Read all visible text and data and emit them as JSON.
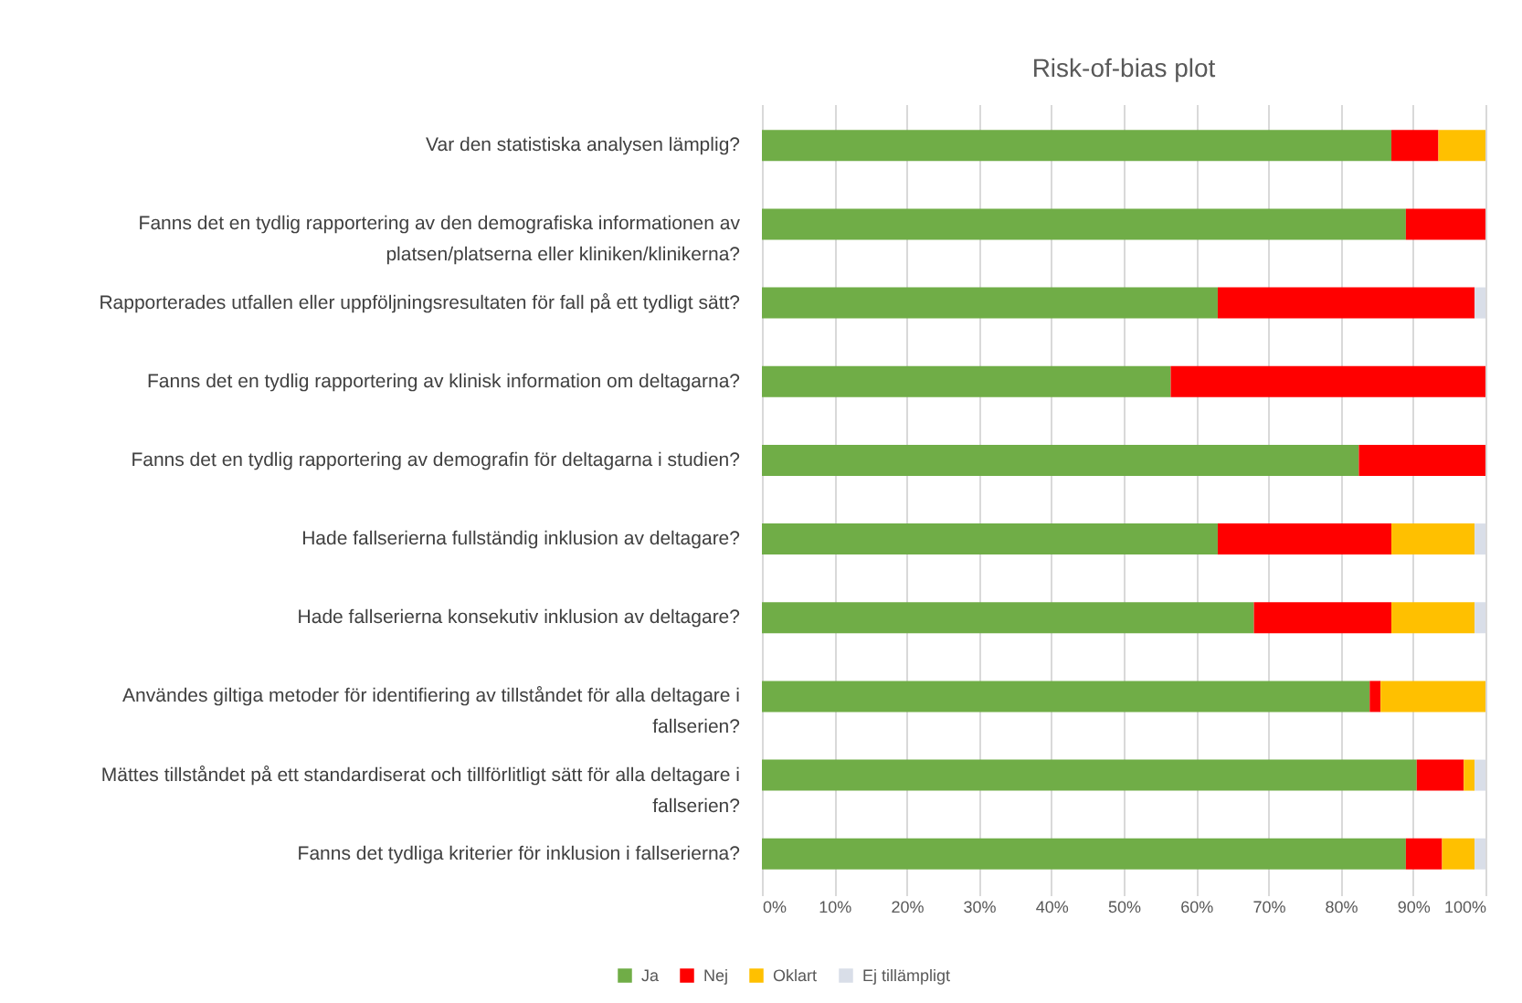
{
  "chart_data": {
    "type": "bar",
    "orientation": "horizontal",
    "stacked": true,
    "title": "Risk-of-bias plot",
    "categories": [
      "Var den statistiska analysen lämplig?",
      "Fanns det en tydlig rapportering av den demografiska informationen av platsen/platserna eller kliniken/klinikerna?",
      "Rapporterades utfallen eller uppföljningsresultaten för fall på ett tydligt sätt?",
      "Fanns det en tydlig rapportering av klinisk information om deltagarna?",
      "Fanns det en tydlig rapportering av demografin för deltagarna i studien?",
      "Hade fallserierna fullständig inklusion av deltagare?",
      "Hade fallserierna konsekutiv inklusion av deltagare?",
      "Användes giltiga metoder för identifiering av tillståndet för alla deltagare i fallserien?",
      "Mättes tillståndet på ett standardiserat och tillförlitligt sätt för alla deltagare i fallserien?",
      "Fanns det tydliga kriterier för inklusion i fallserierna?"
    ],
    "series": [
      {
        "name": "Ja",
        "color": "#70ad47",
        "values": [
          87,
          89,
          63,
          56.5,
          82.5,
          63,
          68,
          84,
          90.5,
          89
        ]
      },
      {
        "name": "Nej",
        "color": "#ff0000",
        "values": [
          6.5,
          11,
          35.5,
          43.5,
          17.5,
          24,
          19,
          1.5,
          6.5,
          5
        ]
      },
      {
        "name": "Oklart",
        "color": "#ffc000",
        "values": [
          6.5,
          0,
          0,
          0,
          0,
          11.5,
          11.5,
          14.5,
          1.5,
          4.5
        ]
      },
      {
        "name": "Ej tillämpligt",
        "color": "#d9dee8",
        "values": [
          0,
          0,
          1.5,
          0,
          0,
          1.5,
          1.5,
          0,
          1.5,
          1.5
        ]
      }
    ],
    "xlim": [
      0,
      100
    ],
    "xticks": [
      {
        "value": 0,
        "label": "0%"
      },
      {
        "value": 10,
        "label": "10%"
      },
      {
        "value": 20,
        "label": "20%"
      },
      {
        "value": 30,
        "label": "30%"
      },
      {
        "value": 40,
        "label": "40%"
      },
      {
        "value": 50,
        "label": "50%"
      },
      {
        "value": 60,
        "label": "60%"
      },
      {
        "value": 70,
        "label": "70%"
      },
      {
        "value": 80,
        "label": "80%"
      },
      {
        "value": 90,
        "label": "90%"
      },
      {
        "value": 100,
        "label": "100%"
      }
    ],
    "grid": "x",
    "legend": "bottom left"
  }
}
